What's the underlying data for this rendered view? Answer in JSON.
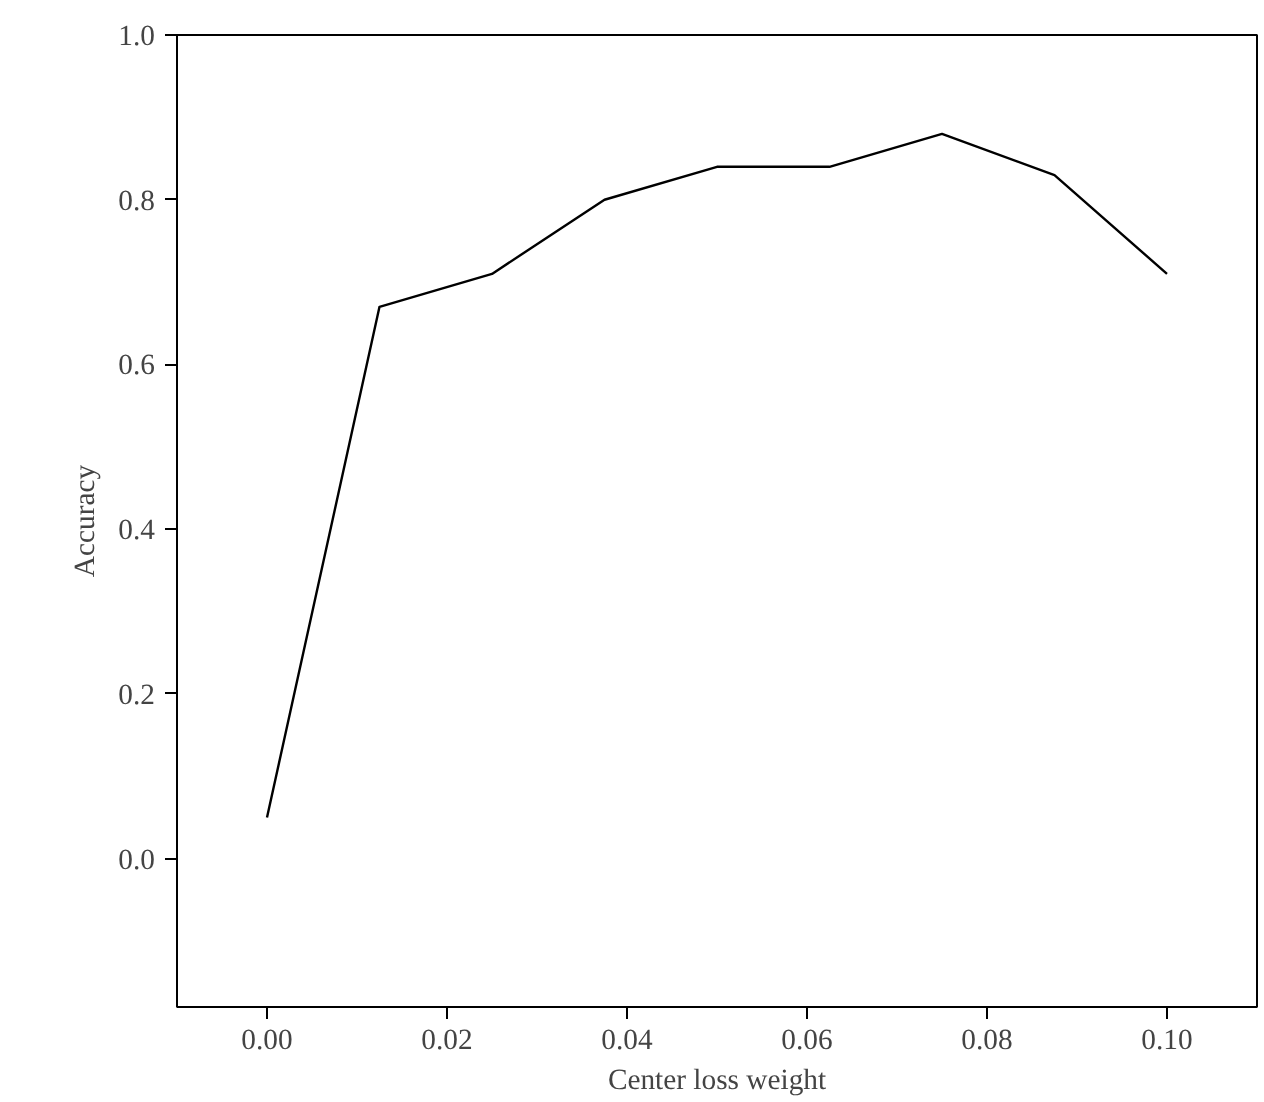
{
  "chart_data": {
    "type": "line",
    "xlabel": "Center loss weight",
    "ylabel": "Accuracy",
    "x": [
      0,
      0.0125,
      0.025,
      0.0375,
      0.05,
      0.0625,
      0.075,
      0.0875,
      0.1
    ],
    "series": [
      {
        "color": "#000000",
        "values": [
          0.05,
          0.67,
          0.71,
          0.8,
          0.84,
          0.84,
          0.88,
          0.83,
          0.71
        ]
      }
    ],
    "xlim": [
      -0.01,
      0.11
    ],
    "ylim": [
      -0.18,
      1.0
    ],
    "xticks": [
      {
        "value": 0,
        "label": "0.00"
      },
      {
        "value": 0.02,
        "label": "0.02"
      },
      {
        "value": 0.04,
        "label": "0.04"
      },
      {
        "value": 0.06,
        "label": "0.06"
      },
      {
        "value": 0.08,
        "label": "0.08"
      },
      {
        "value": 0.1,
        "label": "0.10"
      }
    ],
    "yticks": [
      {
        "value": 0,
        "label": "0.0"
      },
      {
        "value": 0.2,
        "label": "0.2"
      },
      {
        "value": 0.4,
        "label": "0.4"
      },
      {
        "value": 0.6,
        "label": "0.6"
      },
      {
        "value": 0.8,
        "label": "0.8"
      },
      {
        "value": 1.0,
        "label": "1.0"
      }
    ],
    "grid": false,
    "marker": "none",
    "line_style": "solid"
  }
}
